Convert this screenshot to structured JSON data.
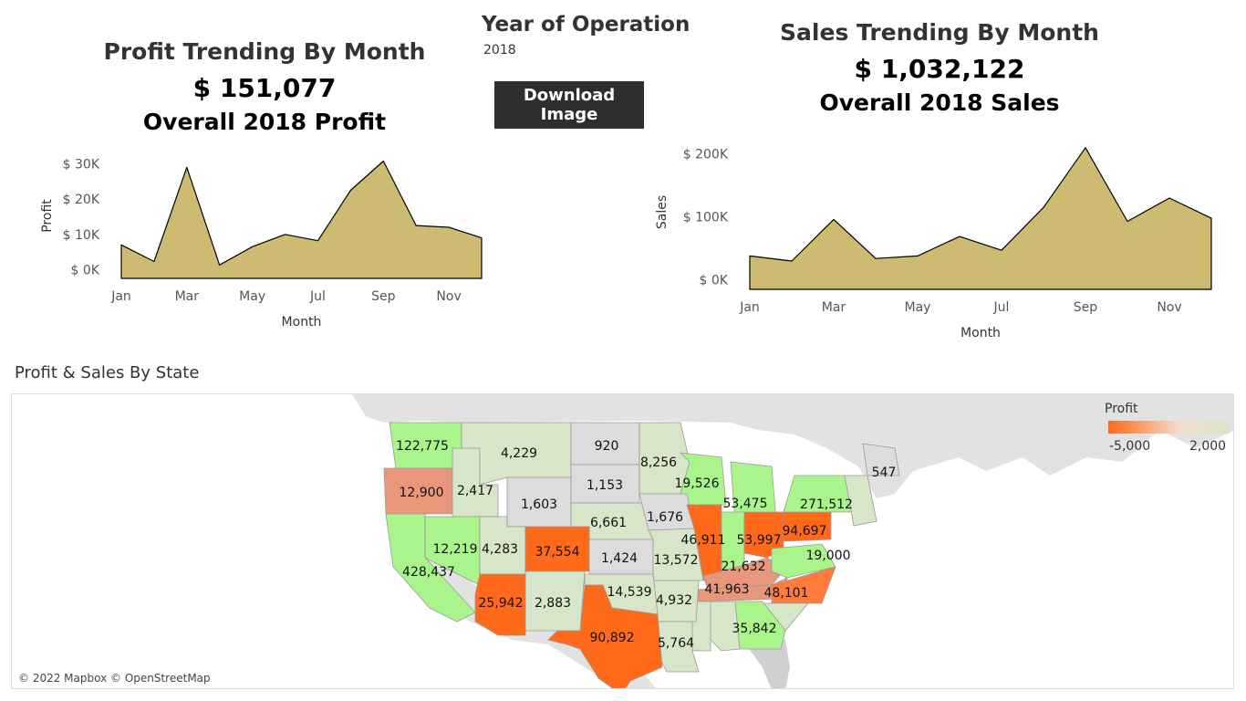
{
  "profit_panel": {
    "title": "Profit Trending By Month",
    "total": "$ 151,077",
    "subtitle": "Overall 2018 Profit"
  },
  "sales_panel": {
    "title": "Sales Trending By Month",
    "total": "$ 1,032,122",
    "subtitle": "Overall 2018 Sales"
  },
  "filter": {
    "title": "Year of Operation",
    "value": "2018"
  },
  "download_button": {
    "label": "Download Image"
  },
  "map_panel": {
    "title": "Profit & Sales By State",
    "legend": {
      "title": "Profit",
      "min_label": "-5,000",
      "max_label": "2,000"
    },
    "attribution": "© 2022 Mapbox © OpenStreetMap",
    "colors": {
      "negative": "#ff6a1a",
      "neutral": "#dcdcdc",
      "positive": "#aaf58b"
    },
    "labels": [
      "122,775",
      "4,229",
      "920",
      "8,256",
      "12,900",
      "2,417",
      "1,603",
      "1,153",
      "19,526",
      "53,475",
      "547",
      "271,512",
      "1,676",
      "6,661",
      "12,219",
      "4,283",
      "37,554",
      "1,424",
      "46,911",
      "53,997",
      "94,697",
      "19,000",
      "428,437",
      "13,572",
      "21,632",
      "41,963",
      "25,942",
      "2,883",
      "14,539",
      "4,932",
      "48,101",
      "90,892",
      "35,842",
      "5,764"
    ]
  },
  "chart_data": [
    {
      "type": "area",
      "x": [
        "Jan",
        "Feb",
        "Mar",
        "Apr",
        "May",
        "Jun",
        "Jul",
        "Aug",
        "Sep",
        "Oct",
        "Nov",
        "Dec"
      ],
      "series": [
        {
          "values": [
            7000,
            2300,
            29000,
            1300,
            6500,
            10000,
            8200,
            22500,
            30800,
            12500,
            12000,
            9000
          ]
        }
      ],
      "ylabel": "Profit",
      "xlabel": "Month",
      "ylim": [
        -2500,
        33000
      ],
      "yticks": [
        0,
        10000,
        20000,
        30000
      ],
      "ytick_labels": [
        "$ 0K",
        "$ 10K",
        "$ 20K",
        "$ 30K"
      ],
      "xtick_labels": [
        "Jan",
        "Mar",
        "May",
        "Jul",
        "Sep",
        "Nov"
      ],
      "fill": "#ccbb71"
    },
    {
      "type": "area",
      "x": [
        "Jan",
        "Feb",
        "Mar",
        "Apr",
        "May",
        "Jun",
        "Jul",
        "Aug",
        "Sep",
        "Oct",
        "Nov",
        "Dec"
      ],
      "series": [
        {
          "values": [
            38000,
            30000,
            96000,
            34000,
            38000,
            69000,
            47000,
            115000,
            210000,
            93000,
            130000,
            98000
          ]
        }
      ],
      "ylabel": "Sales",
      "xlabel": "Month",
      "ylim": [
        -15000,
        230000
      ],
      "yticks": [
        0,
        100000,
        200000
      ],
      "ytick_labels": [
        "$ 0K",
        "$ 100K",
        "$ 200K"
      ],
      "xtick_labels": [
        "Jan",
        "Mar",
        "May",
        "Jul",
        "Sep",
        "Nov"
      ],
      "fill": "#ccbb71"
    }
  ]
}
